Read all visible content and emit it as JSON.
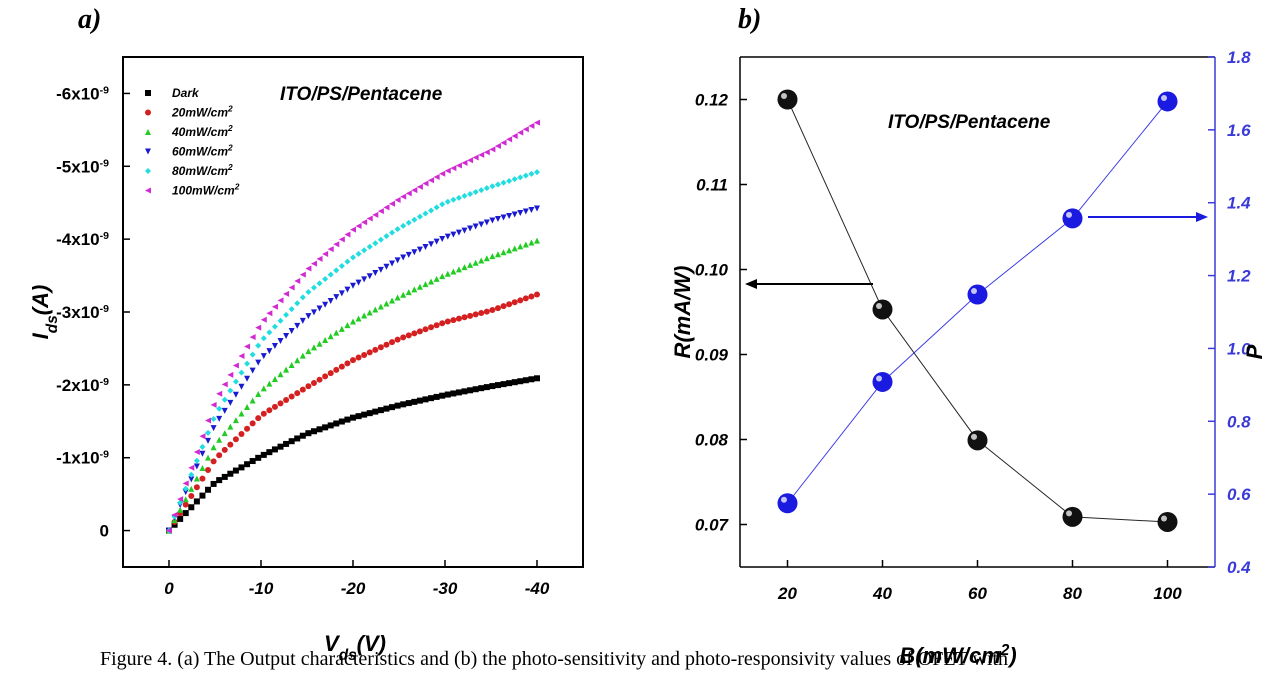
{
  "caption": "Figure 4. (a) The Output characteristics and (b) the photo-sensitivity and photo-responsivity values of OFET with",
  "chart_data": [
    {
      "panel_label": "a)",
      "type": "scatter",
      "annotation": "ITO/PS/Pentacene",
      "xlabel": "Vds(V)",
      "ylabel": "Ids(A)",
      "xlim": [
        5,
        -45
      ],
      "ylim": [
        5e-10,
        -6.5e-09
      ],
      "x_ticks": [
        0,
        -10,
        -20,
        -30,
        -40
      ],
      "x_tick_labels": [
        "0",
        "-10",
        "-20",
        "-30",
        "-40"
      ],
      "y_ticks": [
        0,
        -1e-09,
        -2e-09,
        -3e-09,
        -4e-09,
        -5e-09,
        -6e-09
      ],
      "y_tick_labels": [
        "0",
        "-1x10-9",
        "-2x10-9",
        "-3x10-9",
        "-4x10-9",
        "-5x10-9",
        "-6x10-9"
      ],
      "legend_position": "top-left",
      "series": [
        {
          "name": "Dark",
          "color": "#000000",
          "marker": "square",
          "x": [
            0,
            -5,
            -10,
            -15,
            -20,
            -25,
            -30,
            -35,
            -40
          ],
          "y": [
            0,
            -6.6e-10,
            -1.02e-09,
            -1.33e-09,
            -1.55e-09,
            -1.72e-09,
            -1.86e-09,
            -1.98e-09,
            -2.09e-09
          ]
        },
        {
          "name": "20mW/cm2",
          "color": "#d42020",
          "marker": "circle",
          "x": [
            0,
            -5,
            -10,
            -15,
            -20,
            -25,
            -30,
            -35,
            -40
          ],
          "y": [
            0,
            -9.8e-10,
            -1.58e-09,
            -1.97e-09,
            -2.34e-09,
            -2.63e-09,
            -2.86e-09,
            -3.02e-09,
            -3.24e-09
          ]
        },
        {
          "name": "40mW/cm2",
          "color": "#22cc22",
          "marker": "triangle-up",
          "x": [
            0,
            -5,
            -10,
            -15,
            -20,
            -25,
            -30,
            -35,
            -40
          ],
          "y": [
            0,
            -1.18e-09,
            -1.92e-09,
            -2.45e-09,
            -2.87e-09,
            -3.21e-09,
            -3.51e-09,
            -3.76e-09,
            -3.98e-09
          ]
        },
        {
          "name": "60mW/cm2",
          "color": "#1a1ad0",
          "marker": "triangle-down",
          "x": [
            0,
            -5,
            -10,
            -15,
            -20,
            -25,
            -30,
            -35,
            -40
          ],
          "y": [
            0,
            -1.45e-09,
            -2.36e-09,
            -2.93e-09,
            -3.36e-09,
            -3.72e-09,
            -4.02e-09,
            -4.25e-09,
            -4.42e-09
          ]
        },
        {
          "name": "80mW/cm2",
          "color": "#22dde0",
          "marker": "diamond",
          "x": [
            0,
            -5,
            -10,
            -15,
            -20,
            -25,
            -30,
            -35,
            -40
          ],
          "y": [
            0,
            -1.58e-09,
            -2.6e-09,
            -3.26e-09,
            -3.75e-09,
            -4.15e-09,
            -4.5e-09,
            -4.72e-09,
            -4.92e-09
          ]
        },
        {
          "name": "100mW/cm2",
          "color": "#d22ad2",
          "marker": "triangle-left",
          "x": [
            0,
            -5,
            -10,
            -15,
            -20,
            -25,
            -30,
            -35,
            -40
          ],
          "y": [
            0,
            -1.78e-09,
            -2.85e-09,
            -3.58e-09,
            -4.13e-09,
            -4.55e-09,
            -4.92e-09,
            -5.22e-09,
            -5.6e-09
          ]
        }
      ]
    },
    {
      "panel_label": "b)",
      "type": "line",
      "annotation": "ITO/PS/Pentacene",
      "xlabel": "B(mW/cm2)",
      "ylabel_left": "R(mA/W)",
      "ylabel_right": "P",
      "x": [
        20,
        40,
        60,
        80,
        100
      ],
      "xlim": [
        10,
        110
      ],
      "ylim_left": [
        0.065,
        0.125
      ],
      "ylim_right": [
        0.4,
        1.8
      ],
      "x_ticks": [
        20,
        40,
        60,
        80,
        100
      ],
      "y_left_ticks": [
        0.07,
        0.08,
        0.09,
        0.1,
        0.11,
        0.12
      ],
      "y_left_tick_labels": [
        "0.07",
        "0.08",
        "0.09",
        "0.10",
        "0.11",
        "0.12"
      ],
      "y_right_ticks": [
        0.4,
        0.6,
        0.8,
        1.0,
        1.2,
        1.4,
        1.6,
        1.8
      ],
      "y_right_tick_labels": [
        "0.4",
        "0.6",
        "0.8",
        "1.0",
        "1.2",
        "1.4",
        "1.6",
        "1.8"
      ],
      "series": [
        {
          "axis": "left",
          "color": "#000000",
          "values": [
            0.12,
            0.0953,
            0.0799,
            0.0709,
            0.0703
          ]
        },
        {
          "axis": "right",
          "color": "#1a1ae0",
          "values": [
            0.575,
            0.908,
            1.148,
            1.357,
            1.678
          ]
        }
      ],
      "colors": {
        "right_axis": "#3a3ad8"
      }
    }
  ]
}
